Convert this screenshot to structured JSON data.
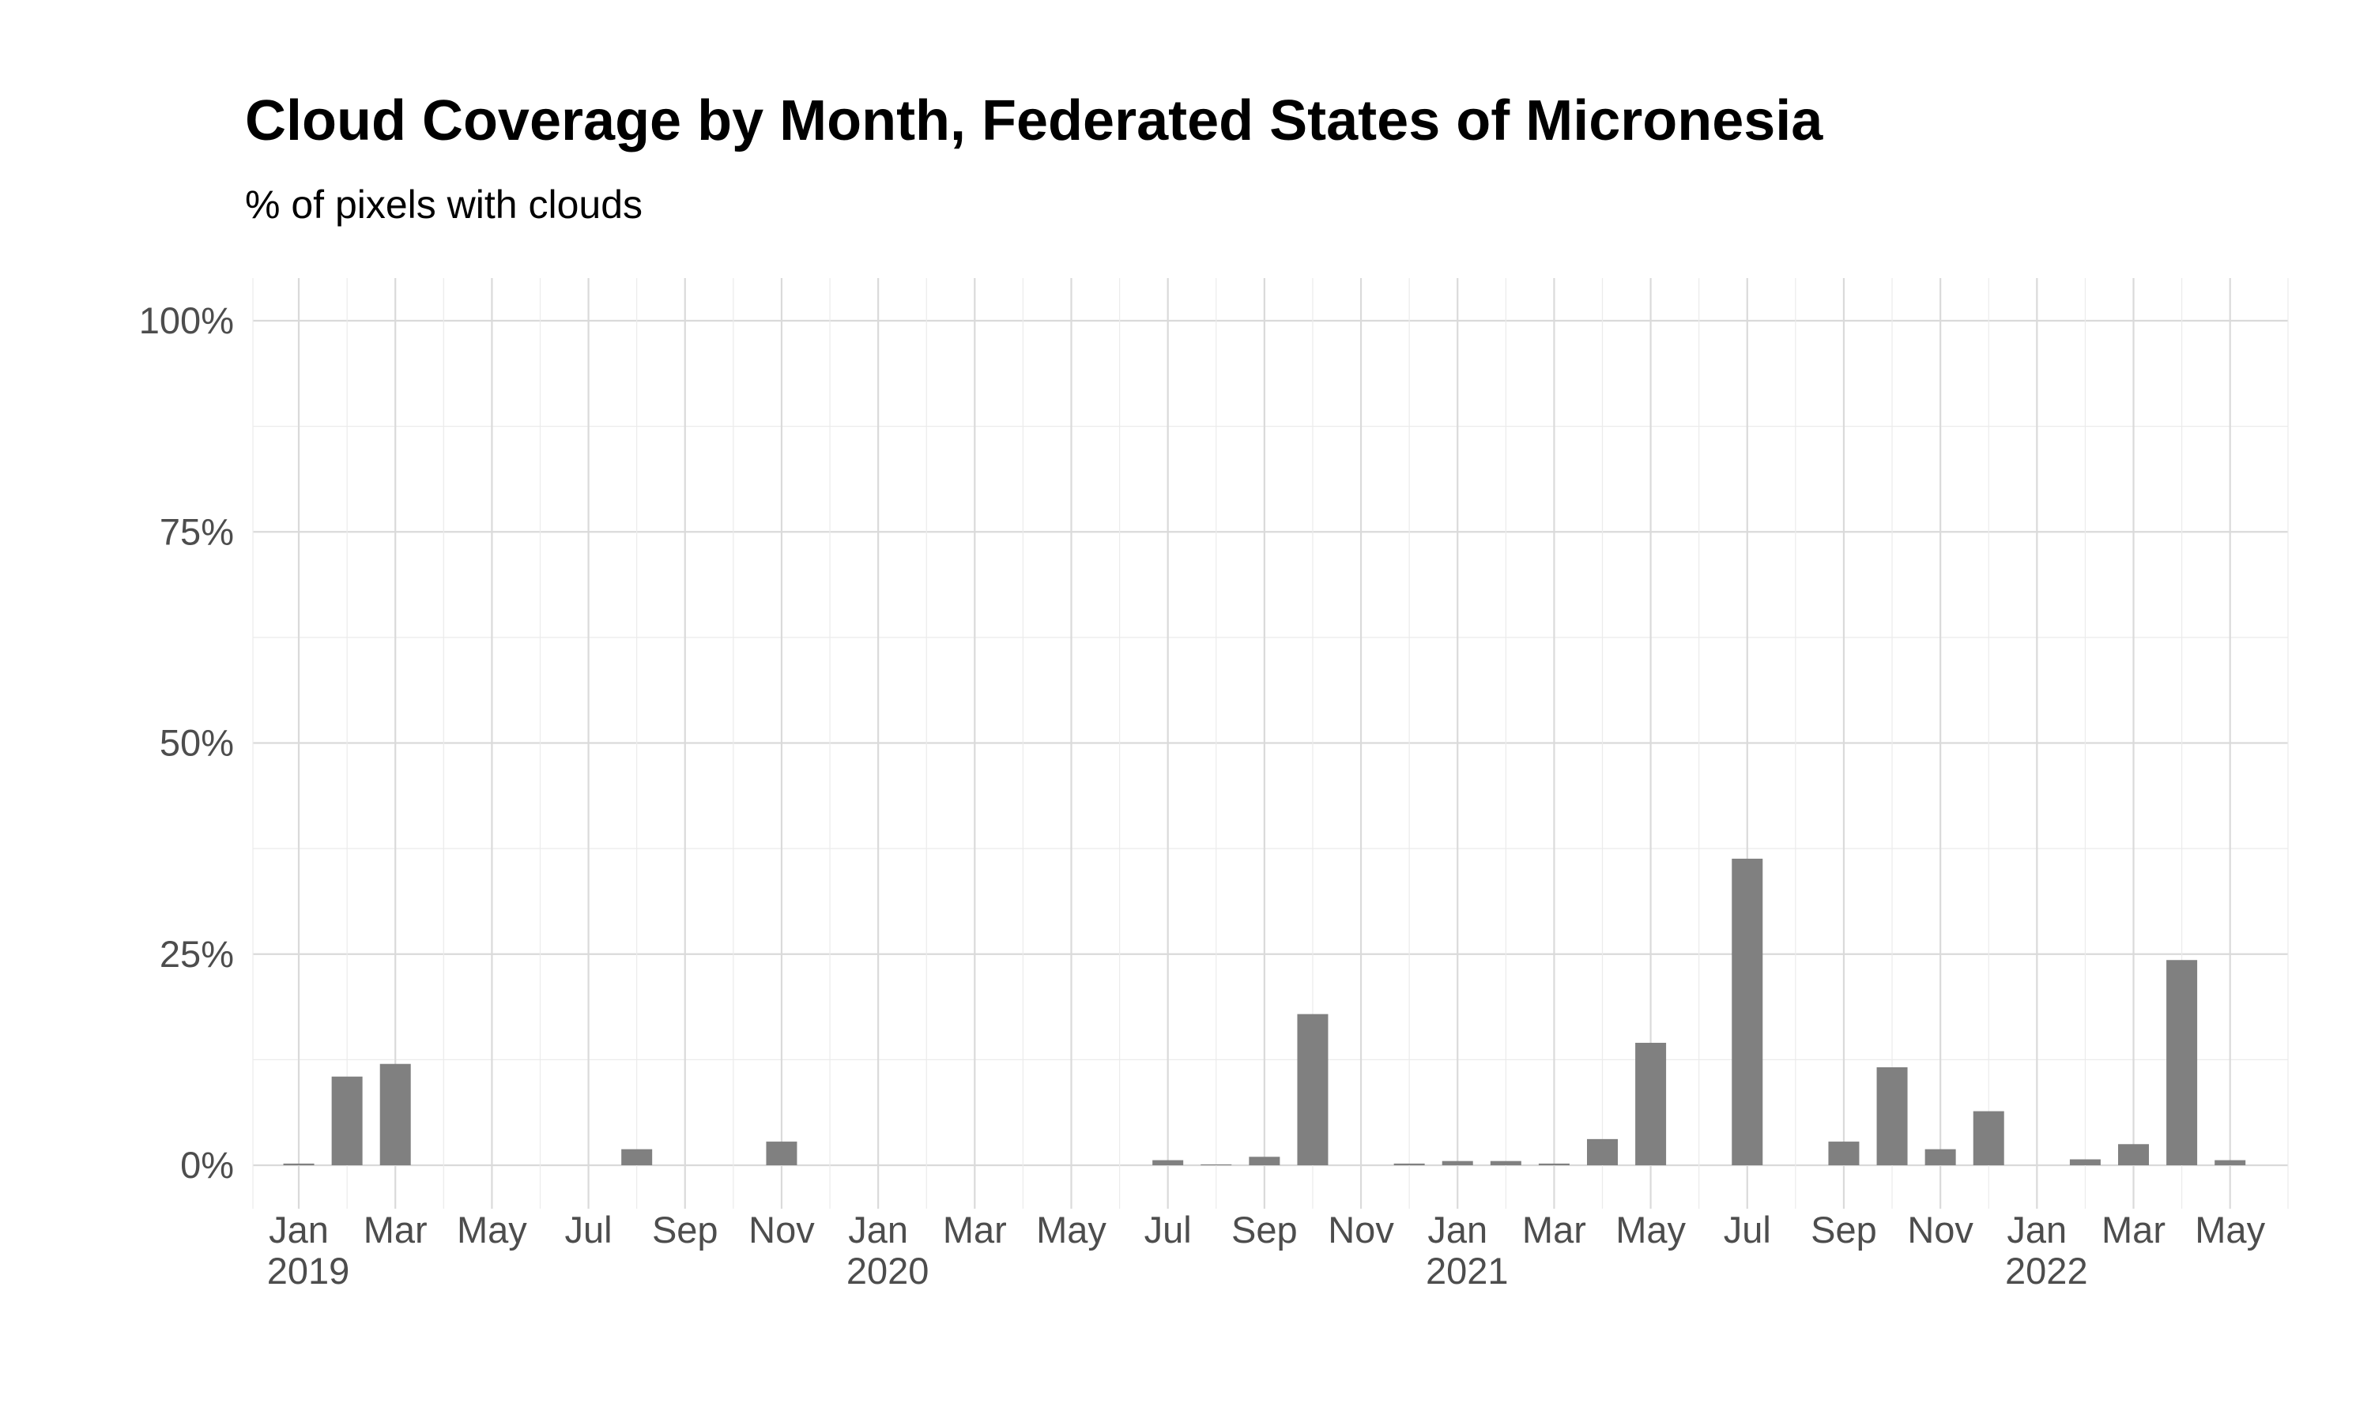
{
  "chart_data": {
    "type": "bar",
    "title": "Cloud Coverage by Month, Federated States of Micronesia",
    "subtitle": "% of pixels with clouds",
    "xlabel": "",
    "ylabel": "",
    "ylim": [
      0,
      100
    ],
    "y_ticks": [
      {
        "value": 0,
        "label": "0%"
      },
      {
        "value": 25,
        "label": "25%"
      },
      {
        "value": 50,
        "label": "50%"
      },
      {
        "value": 75,
        "label": "75%"
      },
      {
        "value": 100,
        "label": "100%"
      }
    ],
    "x_ticks": [
      {
        "month": 0,
        "label": "Jan",
        "year": "2019"
      },
      {
        "month": 2,
        "label": "Mar"
      },
      {
        "month": 4,
        "label": "May"
      },
      {
        "month": 6,
        "label": "Jul"
      },
      {
        "month": 8,
        "label": "Sep"
      },
      {
        "month": 10,
        "label": "Nov"
      },
      {
        "month": 12,
        "label": "Jan",
        "year": "2020"
      },
      {
        "month": 14,
        "label": "Mar"
      },
      {
        "month": 16,
        "label": "May"
      },
      {
        "month": 18,
        "label": "Jul"
      },
      {
        "month": 20,
        "label": "Sep"
      },
      {
        "month": 22,
        "label": "Nov"
      },
      {
        "month": 24,
        "label": "Jan",
        "year": "2021"
      },
      {
        "month": 26,
        "label": "Mar"
      },
      {
        "month": 28,
        "label": "May"
      },
      {
        "month": 30,
        "label": "Jul"
      },
      {
        "month": 32,
        "label": "Sep"
      },
      {
        "month": 34,
        "label": "Nov"
      },
      {
        "month": 36,
        "label": "Jan",
        "year": "2022"
      },
      {
        "month": 38,
        "label": "Mar"
      },
      {
        "month": 40,
        "label": "May"
      }
    ],
    "x_range_months": [
      -0.95,
      41.2
    ],
    "series": [
      {
        "name": "Cloud coverage",
        "color": "#808080",
        "points": [
          {
            "date": "2019-01",
            "month": 0,
            "value": 0.2
          },
          {
            "date": "2019-02",
            "month": 1,
            "value": 10.5
          },
          {
            "date": "2019-03",
            "month": 2,
            "value": 12.0
          },
          {
            "date": "2019-08",
            "month": 7,
            "value": 1.9
          },
          {
            "date": "2019-11",
            "month": 10,
            "value": 2.8
          },
          {
            "date": "2020-07",
            "month": 18,
            "value": 0.6
          },
          {
            "date": "2020-08",
            "month": 19,
            "value": 0.1
          },
          {
            "date": "2020-09",
            "month": 20,
            "value": 1.0
          },
          {
            "date": "2020-10",
            "month": 21,
            "value": 17.9
          },
          {
            "date": "2020-12",
            "month": 23,
            "value": 0.2
          },
          {
            "date": "2021-01",
            "month": 24,
            "value": 0.5
          },
          {
            "date": "2021-02",
            "month": 25,
            "value": 0.5
          },
          {
            "date": "2021-03",
            "month": 26,
            "value": 0.2
          },
          {
            "date": "2021-04",
            "month": 27,
            "value": 3.1
          },
          {
            "date": "2021-05",
            "month": 28,
            "value": 14.5
          },
          {
            "date": "2021-07",
            "month": 30,
            "value": 36.3
          },
          {
            "date": "2021-09",
            "month": 32,
            "value": 2.8
          },
          {
            "date": "2021-10",
            "month": 33,
            "value": 11.6
          },
          {
            "date": "2021-11",
            "month": 34,
            "value": 1.9
          },
          {
            "date": "2021-12",
            "month": 35,
            "value": 6.4
          },
          {
            "date": "2022-02",
            "month": 37,
            "value": 0.7
          },
          {
            "date": "2022-03",
            "month": 38,
            "value": 2.5
          },
          {
            "date": "2022-04",
            "month": 39,
            "value": 24.3
          },
          {
            "date": "2022-05",
            "month": 40,
            "value": 0.6
          }
        ]
      }
    ],
    "grid": true,
    "legend": "none"
  }
}
